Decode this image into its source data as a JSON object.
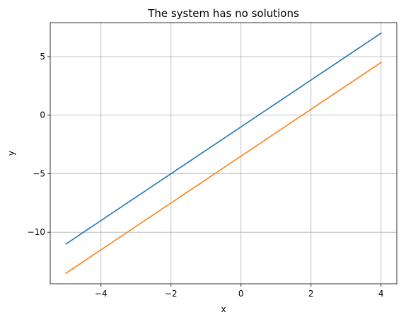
{
  "chart_data": {
    "type": "line",
    "title": "The system has no solutions",
    "xlabel": "x",
    "ylabel": "y",
    "xlim": [
      -5.45,
      4.45
    ],
    "ylim": [
      -14.4,
      7.9
    ],
    "xticks": [
      -4,
      -2,
      0,
      2,
      4
    ],
    "yticks": [
      -10,
      -5,
      0,
      5
    ],
    "xtick_labels": [
      "−4",
      "−2",
      "0",
      "2",
      "4"
    ],
    "ytick_labels": [
      "−10",
      "−5",
      "0",
      "5"
    ],
    "grid": true,
    "series": [
      {
        "color": "#1f77b4",
        "x": [
          -5,
          4
        ],
        "y": [
          -11,
          7
        ]
      },
      {
        "color": "#ff7f0e",
        "x": [
          -5,
          4
        ],
        "y": [
          -13.5,
          4.5
        ]
      }
    ]
  }
}
